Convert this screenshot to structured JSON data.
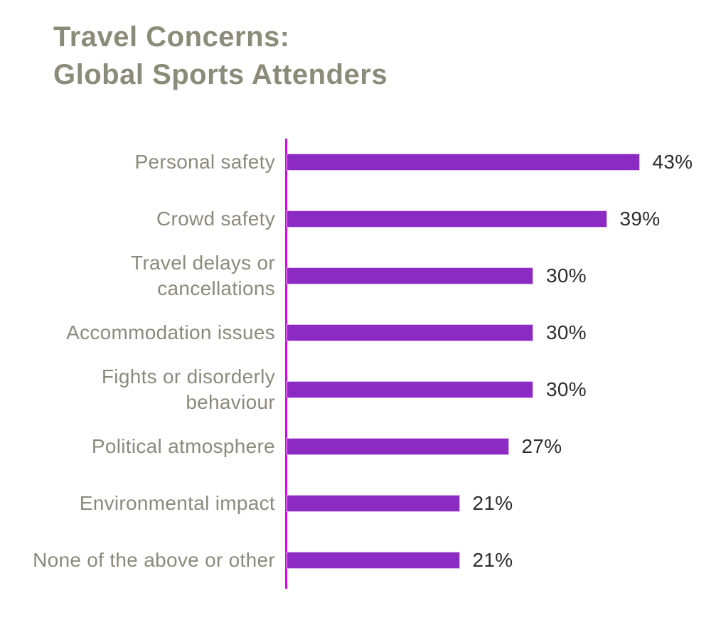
{
  "page": {
    "background": "#ffffff"
  },
  "title": {
    "line1": "Travel Concerns:",
    "line2": "Global Sports Attenders",
    "color": "#8b8b79"
  },
  "chart_data": {
    "type": "bar",
    "orientation": "horizontal",
    "title": "Travel Concerns: Global Sports Attenders",
    "categories": [
      "Personal safety",
      "Crowd safety",
      "Travel delays or cancellations",
      "Accommodation issues",
      "Fights or disorderly behaviour",
      "Political atmosphere",
      "Environmental impact",
      "None of the above or other"
    ],
    "values": [
      43,
      39,
      30,
      30,
      30,
      27,
      21,
      21
    ],
    "value_labels": [
      "43%",
      "39%",
      "30%",
      "30%",
      "30%",
      "27%",
      "21%",
      "21%"
    ],
    "xlim": [
      0,
      50
    ],
    "grid": false,
    "legend": false,
    "bar_color": "#8b2bc3",
    "bar_edge_color": "#ddbbee",
    "axis_line_color": "#dd00f5",
    "category_label_color": "#8a8a7c",
    "value_label_color": "#2d2d2d"
  }
}
